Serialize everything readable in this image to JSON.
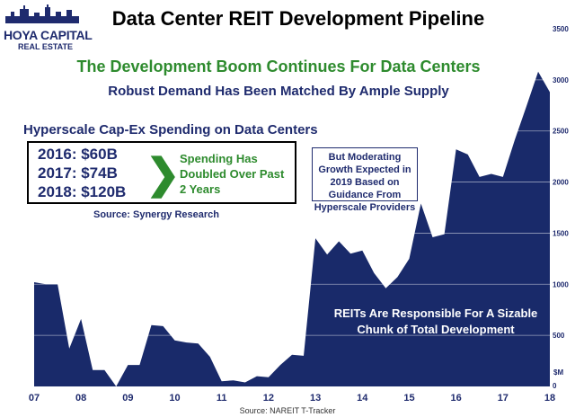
{
  "colors": {
    "area": "#192a6a",
    "gridline": "#ffffff",
    "accent_green": "#2e8b2e",
    "navy": "#1f2b6e"
  },
  "logo": {
    "line1": "HOYA CAPITAL",
    "line2": "REAL ESTATE",
    "icon": "city-skyline-icon"
  },
  "header": {
    "title": "Data Center REIT Development Pipeline",
    "headline": "The Development Boom Continues For Data Centers",
    "subhead": "Robust Demand Has Been Matched By Ample Supply"
  },
  "spending": {
    "heading": "Hyperscale Cap-Ex Spending on Data Centers",
    "lines": [
      "2016: $60B",
      "2017: $74B",
      "2018: $120B"
    ],
    "note": "Spending Has Doubled Over Past 2 Years",
    "source": "Source: Synergy Research",
    "icon": "chevron-right-icon"
  },
  "growth_note": "But Moderating Growth Expected in 2019 Based on Guidance From Hyperscale Providers",
  "reit_note": "REITs Are Responsible For A Sizable Chunk of Total Development",
  "source": "Source: NAREIT T-Tracker",
  "unit_label": "$M",
  "chart_data": {
    "type": "area",
    "title": "Data Center REIT Development Pipeline",
    "xlabel": "",
    "ylabel": "",
    "y_unit": "$M",
    "ylim": [
      0,
      3500
    ],
    "xlim": [
      2007,
      2018
    ],
    "y_ticks": [
      0,
      500,
      1000,
      1500,
      2000,
      2500,
      3000,
      3500
    ],
    "y_axis_side": "right",
    "x_tick_values": [
      2007,
      2008,
      2009,
      2010,
      2011,
      2012,
      2013,
      2014,
      2015,
      2016,
      2017,
      2018
    ],
    "x_tick_labels": [
      "07",
      "08",
      "09",
      "10",
      "11",
      "12",
      "13",
      "14",
      "15",
      "16",
      "17",
      "18"
    ],
    "grid": "horizontal",
    "x": [
      2007.0,
      2007.25,
      2007.5,
      2007.75,
      2008.0,
      2008.25,
      2008.5,
      2008.75,
      2009.0,
      2009.25,
      2009.5,
      2009.75,
      2010.0,
      2010.25,
      2010.5,
      2010.75,
      2011.0,
      2011.25,
      2011.5,
      2011.75,
      2012.0,
      2012.25,
      2012.5,
      2012.75,
      2013.0,
      2013.25,
      2013.5,
      2013.75,
      2014.0,
      2014.25,
      2014.5,
      2014.75,
      2015.0,
      2015.25,
      2015.5,
      2015.75,
      2016.0,
      2016.25,
      2016.5,
      2016.75,
      2017.0,
      2017.25,
      2017.5,
      2017.75,
      2018.0
    ],
    "values": [
      1020,
      1000,
      1000,
      370,
      660,
      160,
      160,
      0,
      210,
      210,
      600,
      590,
      450,
      430,
      420,
      290,
      50,
      60,
      40,
      100,
      90,
      210,
      310,
      300,
      1450,
      1290,
      1420,
      1300,
      1330,
      1110,
      960,
      1070,
      1250,
      1790,
      1460,
      1490,
      2320,
      2270,
      2050,
      2080,
      2050,
      2410,
      2740,
      3080,
      2880
    ]
  }
}
